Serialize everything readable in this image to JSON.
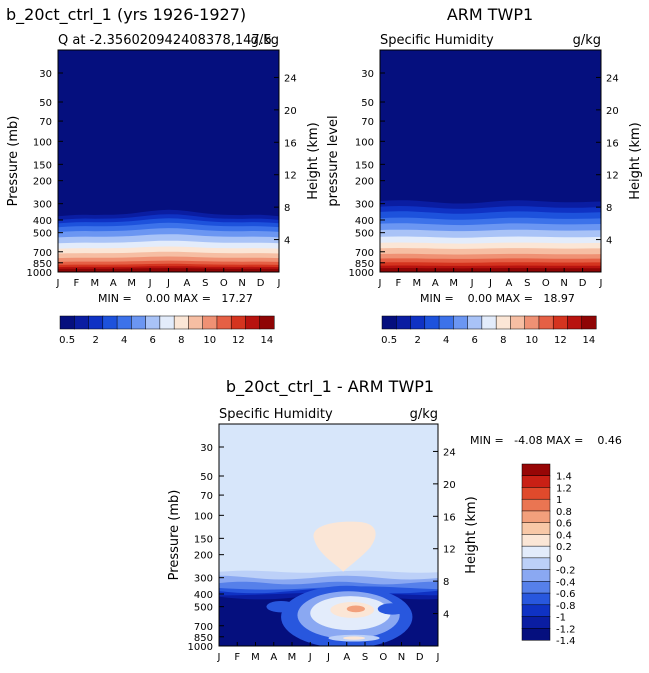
{
  "colors": {
    "seq": [
      "#050f7e",
      "#0a1da2",
      "#0f32c4",
      "#1d52dc",
      "#3c72ea",
      "#6b96f2",
      "#a9c3f7",
      "#e3ecfb",
      "#fbe6d6",
      "#f6bea3",
      "#ef9174",
      "#e56045",
      "#d5341f",
      "#b8130f",
      "#8f0505"
    ],
    "diff": [
      "#050f7e",
      "#0a1da2",
      "#0f32c4",
      "#2857de",
      "#5680ea",
      "#8aa8f2",
      "#bcd0f8",
      "#e3ecfb",
      "#fbe6d6",
      "#f8c8a7",
      "#f2a07c",
      "#ea7552",
      "#e04a2c",
      "#c92015",
      "#970606"
    ]
  },
  "charts": [
    {
      "title": "b_20ct_ctrl_1 (yrs 1926-1927)",
      "subtitle_left": "Q at -2.356020942408378,147.5",
      "subtitle_right": "g/kg",
      "ylabel": "Pressure (mb)",
      "y2label": "Height (km)",
      "minmax": "MIN =    0.00 MAX =   17.27",
      "colorbar_labels": [
        "0.5",
        "2",
        "4",
        "6",
        "8",
        "10",
        "12",
        "14"
      ]
    },
    {
      "title": "ARM TWP1",
      "subtitle_left": "Specific Humidity",
      "subtitle_right": "g/kg",
      "ylabel": "pressure level",
      "y2label": "Height (km)",
      "minmax": "MIN =    0.00 MAX =   18.97",
      "colorbar_labels": [
        "0.5",
        "2",
        "4",
        "6",
        "8",
        "10",
        "12",
        "14"
      ]
    },
    {
      "title": "b_20ct_ctrl_1 - ARM TWP1",
      "subtitle_left": "Specific Humidity",
      "subtitle_right": "g/kg",
      "ylabel": "Pressure (mb)",
      "y2label": "Height (km)",
      "minmax": "MIN =   -4.08 MAX =    0.46",
      "colorbar_labels": [
        "1.4",
        "1.2",
        "1",
        "0.8",
        "0.6",
        "0.4",
        "0.2",
        "0",
        "-0.2",
        "-0.4",
        "-0.6",
        "-0.8",
        "-1",
        "-1.2",
        "-1.4"
      ]
    }
  ],
  "chart_data": [
    {
      "type": "heatmap",
      "title": "b_20ct_ctrl_1 (yrs 1926-1927)",
      "x_ticks": [
        "J",
        "F",
        "M",
        "A",
        "M",
        "J",
        "J",
        "A",
        "S",
        "O",
        "N",
        "D",
        "J"
      ],
      "y_ticks_pressure": [
        30,
        50,
        70,
        100,
        150,
        200,
        300,
        400,
        500,
        700,
        850,
        1000
      ],
      "y2_ticks_height": [
        24,
        20,
        16,
        12,
        8,
        4
      ],
      "ylim_mb": [
        20,
        1000
      ],
      "units": "g/kg",
      "min": 0.0,
      "max": 17.27,
      "levels": [
        0.5,
        1,
        2,
        3,
        4,
        5,
        6,
        7,
        8,
        9,
        10,
        11,
        12,
        13,
        14
      ]
    },
    {
      "type": "heatmap",
      "title": "ARM TWP1",
      "x_ticks": [
        "J",
        "F",
        "M",
        "A",
        "M",
        "J",
        "J",
        "A",
        "S",
        "O",
        "N",
        "D",
        "J"
      ],
      "y_ticks_pressure": [
        30,
        50,
        70,
        100,
        150,
        200,
        300,
        400,
        500,
        700,
        850,
        1000
      ],
      "y2_ticks_height": [
        24,
        20,
        16,
        12,
        8,
        4
      ],
      "ylim_mb": [
        20,
        1000
      ],
      "units": "g/kg",
      "min": 0.0,
      "max": 18.97,
      "levels": [
        0.5,
        1,
        2,
        3,
        4,
        5,
        6,
        7,
        8,
        9,
        10,
        11,
        12,
        13,
        14
      ]
    },
    {
      "type": "heatmap",
      "title": "b_20ct_ctrl_1 - ARM TWP1",
      "x_ticks": [
        "J",
        "F",
        "M",
        "A",
        "M",
        "J",
        "J",
        "A",
        "S",
        "O",
        "N",
        "D",
        "J"
      ],
      "y_ticks_pressure": [
        30,
        50,
        70,
        100,
        150,
        200,
        300,
        400,
        500,
        700,
        850,
        1000
      ],
      "y2_ticks_height": [
        24,
        20,
        16,
        12,
        8,
        4
      ],
      "ylim_mb": [
        20,
        1000
      ],
      "units": "g/kg",
      "min": -4.08,
      "max": 0.46,
      "levels": [
        -1.4,
        -1.2,
        -1,
        -0.8,
        -0.6,
        -0.4,
        -0.2,
        0,
        0.2,
        0.4,
        0.6,
        0.8,
        1,
        1.2,
        1.4
      ]
    }
  ]
}
